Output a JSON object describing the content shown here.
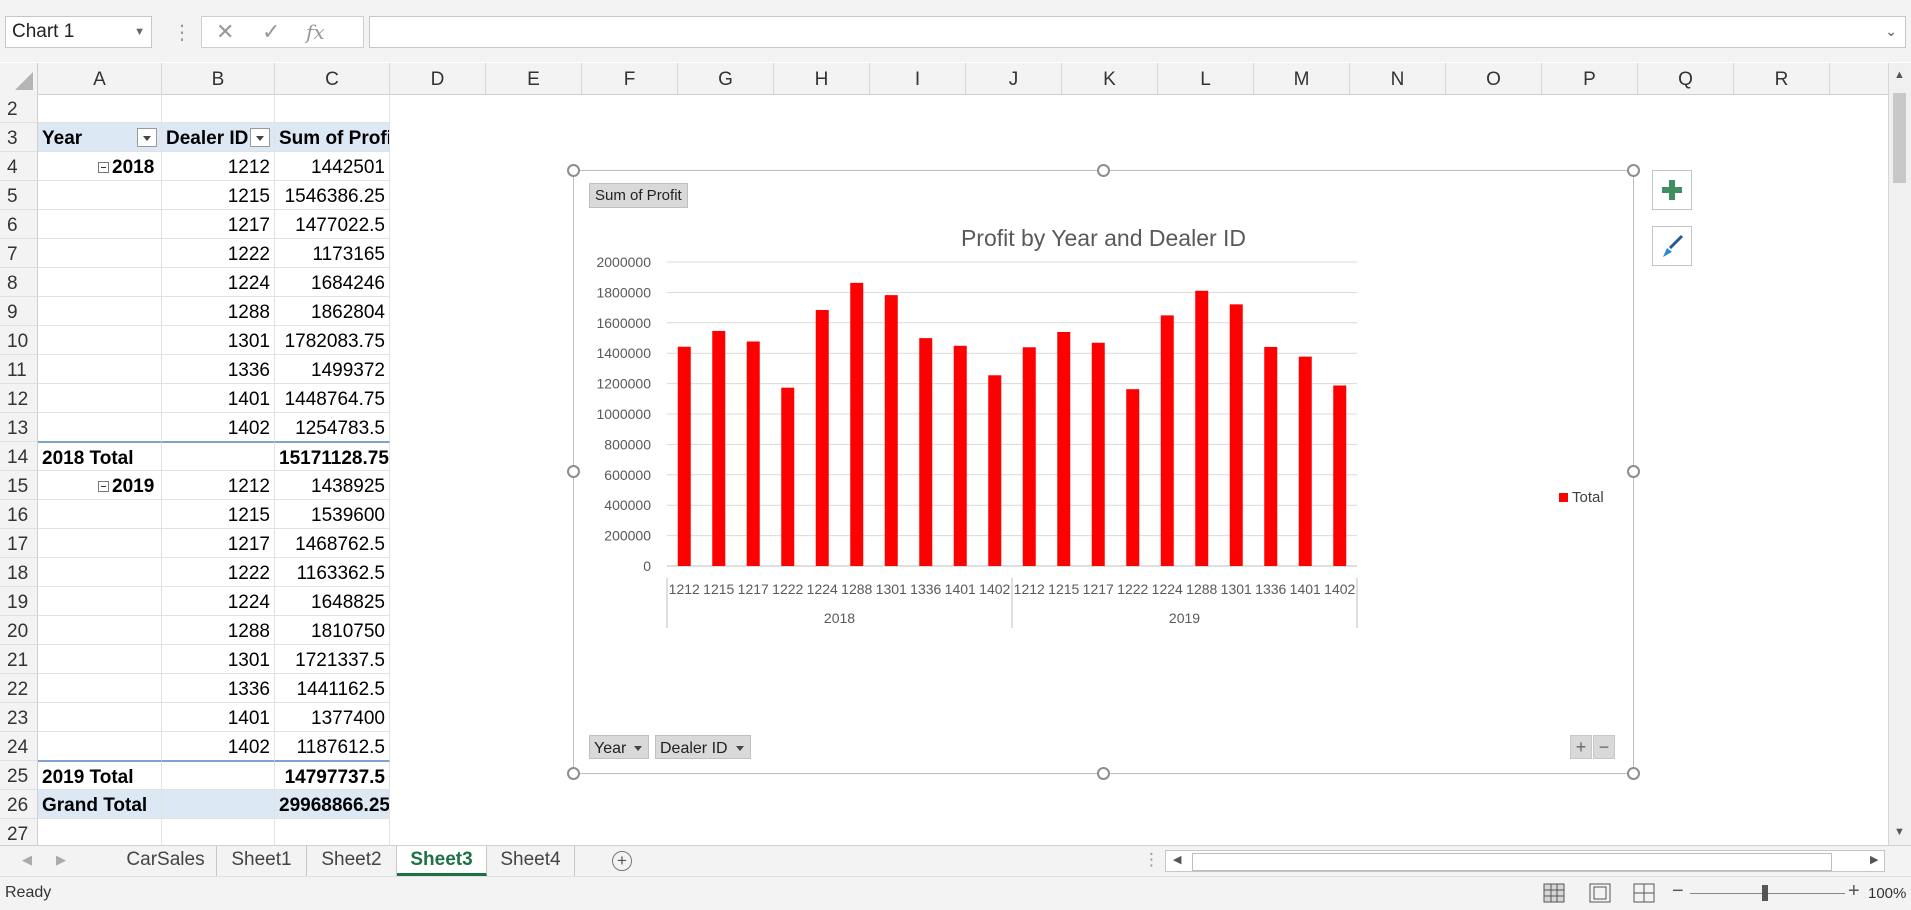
{
  "name_box": "Chart 1",
  "formula_bar": {
    "cancel_icon": "✕",
    "enter_icon": "✓",
    "fx_label": "fx",
    "value": ""
  },
  "columns": [
    "A",
    "B",
    "C",
    "D",
    "E",
    "F",
    "G",
    "H",
    "I",
    "J",
    "K",
    "L",
    "M",
    "N",
    "O",
    "P",
    "Q",
    "R"
  ],
  "rows": [
    {
      "n": "2",
      "a": "",
      "b": "",
      "c": ""
    },
    {
      "n": "3",
      "a": "Year",
      "b": "Dealer ID",
      "c": "Sum of Profit"
    },
    {
      "n": "4",
      "a": "2018",
      "b": "1212",
      "c": "1442501"
    },
    {
      "n": "5",
      "a": "",
      "b": "1215",
      "c": "1546386.25"
    },
    {
      "n": "6",
      "a": "",
      "b": "1217",
      "c": "1477022.5"
    },
    {
      "n": "7",
      "a": "",
      "b": "1222",
      "c": "1173165"
    },
    {
      "n": "8",
      "a": "",
      "b": "1224",
      "c": "1684246"
    },
    {
      "n": "9",
      "a": "",
      "b": "1288",
      "c": "1862804"
    },
    {
      "n": "10",
      "a": "",
      "b": "1301",
      "c": "1782083.75"
    },
    {
      "n": "11",
      "a": "",
      "b": "1336",
      "c": "1499372"
    },
    {
      "n": "12",
      "a": "",
      "b": "1401",
      "c": "1448764.75"
    },
    {
      "n": "13",
      "a": "",
      "b": "1402",
      "c": "1254783.5"
    },
    {
      "n": "14",
      "a": "2018 Total",
      "b": "",
      "c": "15171128.75"
    },
    {
      "n": "15",
      "a": "2019",
      "b": "1212",
      "c": "1438925"
    },
    {
      "n": "16",
      "a": "",
      "b": "1215",
      "c": "1539600"
    },
    {
      "n": "17",
      "a": "",
      "b": "1217",
      "c": "1468762.5"
    },
    {
      "n": "18",
      "a": "",
      "b": "1222",
      "c": "1163362.5"
    },
    {
      "n": "19",
      "a": "",
      "b": "1224",
      "c": "1648825"
    },
    {
      "n": "20",
      "a": "",
      "b": "1288",
      "c": "1810750"
    },
    {
      "n": "21",
      "a": "",
      "b": "1301",
      "c": "1721337.5"
    },
    {
      "n": "22",
      "a": "",
      "b": "1336",
      "c": "1441162.5"
    },
    {
      "n": "23",
      "a": "",
      "b": "1401",
      "c": "1377400"
    },
    {
      "n": "24",
      "a": "",
      "b": "1402",
      "c": "1187612.5"
    },
    {
      "n": "25",
      "a": "2019 Total",
      "b": "",
      "c": "14797737.5"
    },
    {
      "n": "26",
      "a": "Grand Total",
      "b": "",
      "c": "29968866.25"
    },
    {
      "n": "27",
      "a": "",
      "b": "",
      "c": ""
    }
  ],
  "chart_data": {
    "type": "bar",
    "title": "Profit by Year and Dealer ID",
    "value_field_button": "Sum of Profit",
    "axis_field_buttons": [
      "Year",
      "Dealer ID"
    ],
    "groups": [
      {
        "label": "2018",
        "categories": [
          "1212",
          "1215",
          "1217",
          "1222",
          "1224",
          "1288",
          "1301",
          "1336",
          "1401",
          "1402"
        ]
      },
      {
        "label": "2019",
        "categories": [
          "1212",
          "1215",
          "1217",
          "1222",
          "1224",
          "1288",
          "1301",
          "1336",
          "1401",
          "1402"
        ]
      }
    ],
    "series": [
      {
        "name": "Total",
        "color": "#ff0000",
        "values": [
          1442501,
          1546386.25,
          1477022.5,
          1173165,
          1684246,
          1862804,
          1782083.75,
          1499372,
          1448764.75,
          1254783.5,
          1438925,
          1539600,
          1468762.5,
          1163362.5,
          1648825,
          1810750,
          1721337.5,
          1441162.5,
          1377400,
          1187612.5
        ]
      }
    ],
    "ylim": [
      0,
      2000000
    ],
    "yticks": [
      "0",
      "200000",
      "400000",
      "600000",
      "800000",
      "1000000",
      "1200000",
      "1400000",
      "1600000",
      "1800000",
      "2000000"
    ],
    "grid": true,
    "legend_position": "right"
  },
  "chart_buttons": {
    "plus_icon": "+",
    "minus_icon": "−"
  },
  "sheet_tabs": [
    "CarSales",
    "Sheet1",
    "Sheet2",
    "Sheet3",
    "Sheet4"
  ],
  "active_sheet": "Sheet3",
  "add_sheet_icon": "+",
  "status": {
    "text": "Ready",
    "zoom": "100%",
    "zoom_minus": "−",
    "zoom_plus": "+"
  }
}
